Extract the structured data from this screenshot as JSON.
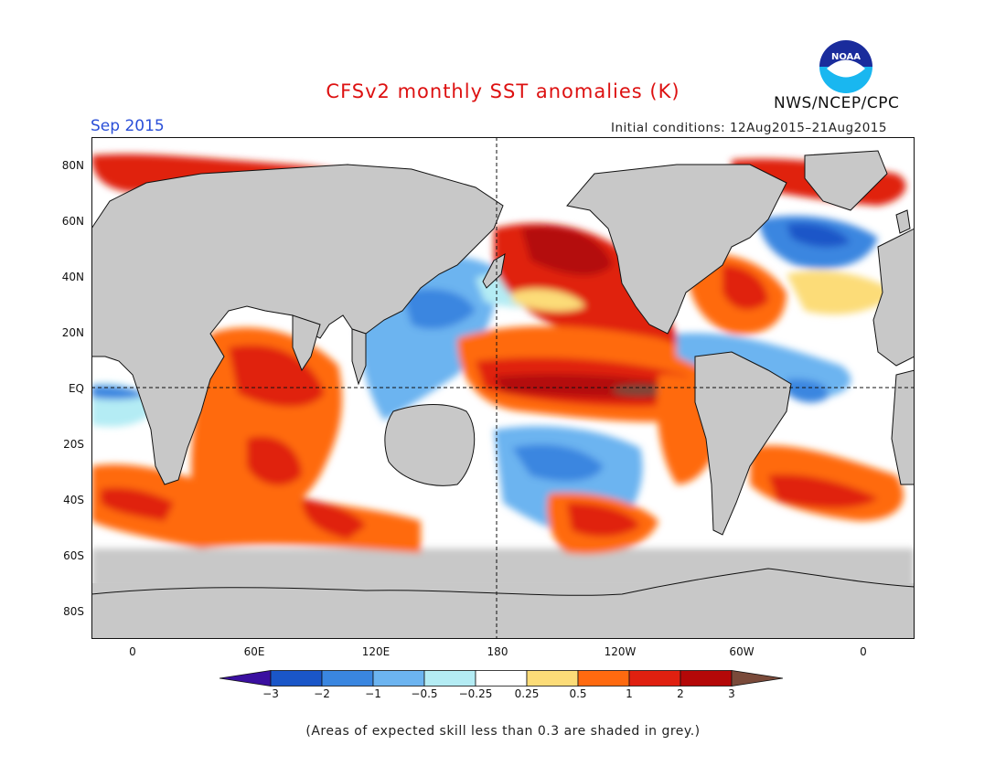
{
  "header": {
    "title": "CFSv2 monthly SST anomalies (K)",
    "month": "Sep 2015",
    "initial_conditions": "Initial conditions: 12Aug2015–21Aug2015",
    "agency": "NWS/NCEP/CPC",
    "logo_text": "NOAA",
    "logo_icon": "noaa-logo"
  },
  "map": {
    "lat_labels": [
      "80N",
      "60N",
      "40N",
      "20N",
      "EQ",
      "20S",
      "40S",
      "60S",
      "80S"
    ],
    "lon_labels": [
      "0",
      "60E",
      "120E",
      "180",
      "120W",
      "60W",
      "0"
    ]
  },
  "colorbar": {
    "labels": [
      "−3",
      "−2",
      "−1",
      "−0.5",
      "−0.25",
      "0.25",
      "0.5",
      "1",
      "2",
      "3"
    ],
    "colors": [
      "#3a0fa0",
      "#1a56c8",
      "#3a86e0",
      "#6cb4f0",
      "#b4ecf4",
      "#ffffff",
      "#fcdc78",
      "#ff6a10",
      "#e02010",
      "#b40808",
      "#7a4a3a"
    ],
    "land_color": "#c8c8c8"
  },
  "footnote": "(Areas of expected skill less than 0.3 are shaded in grey.)"
}
